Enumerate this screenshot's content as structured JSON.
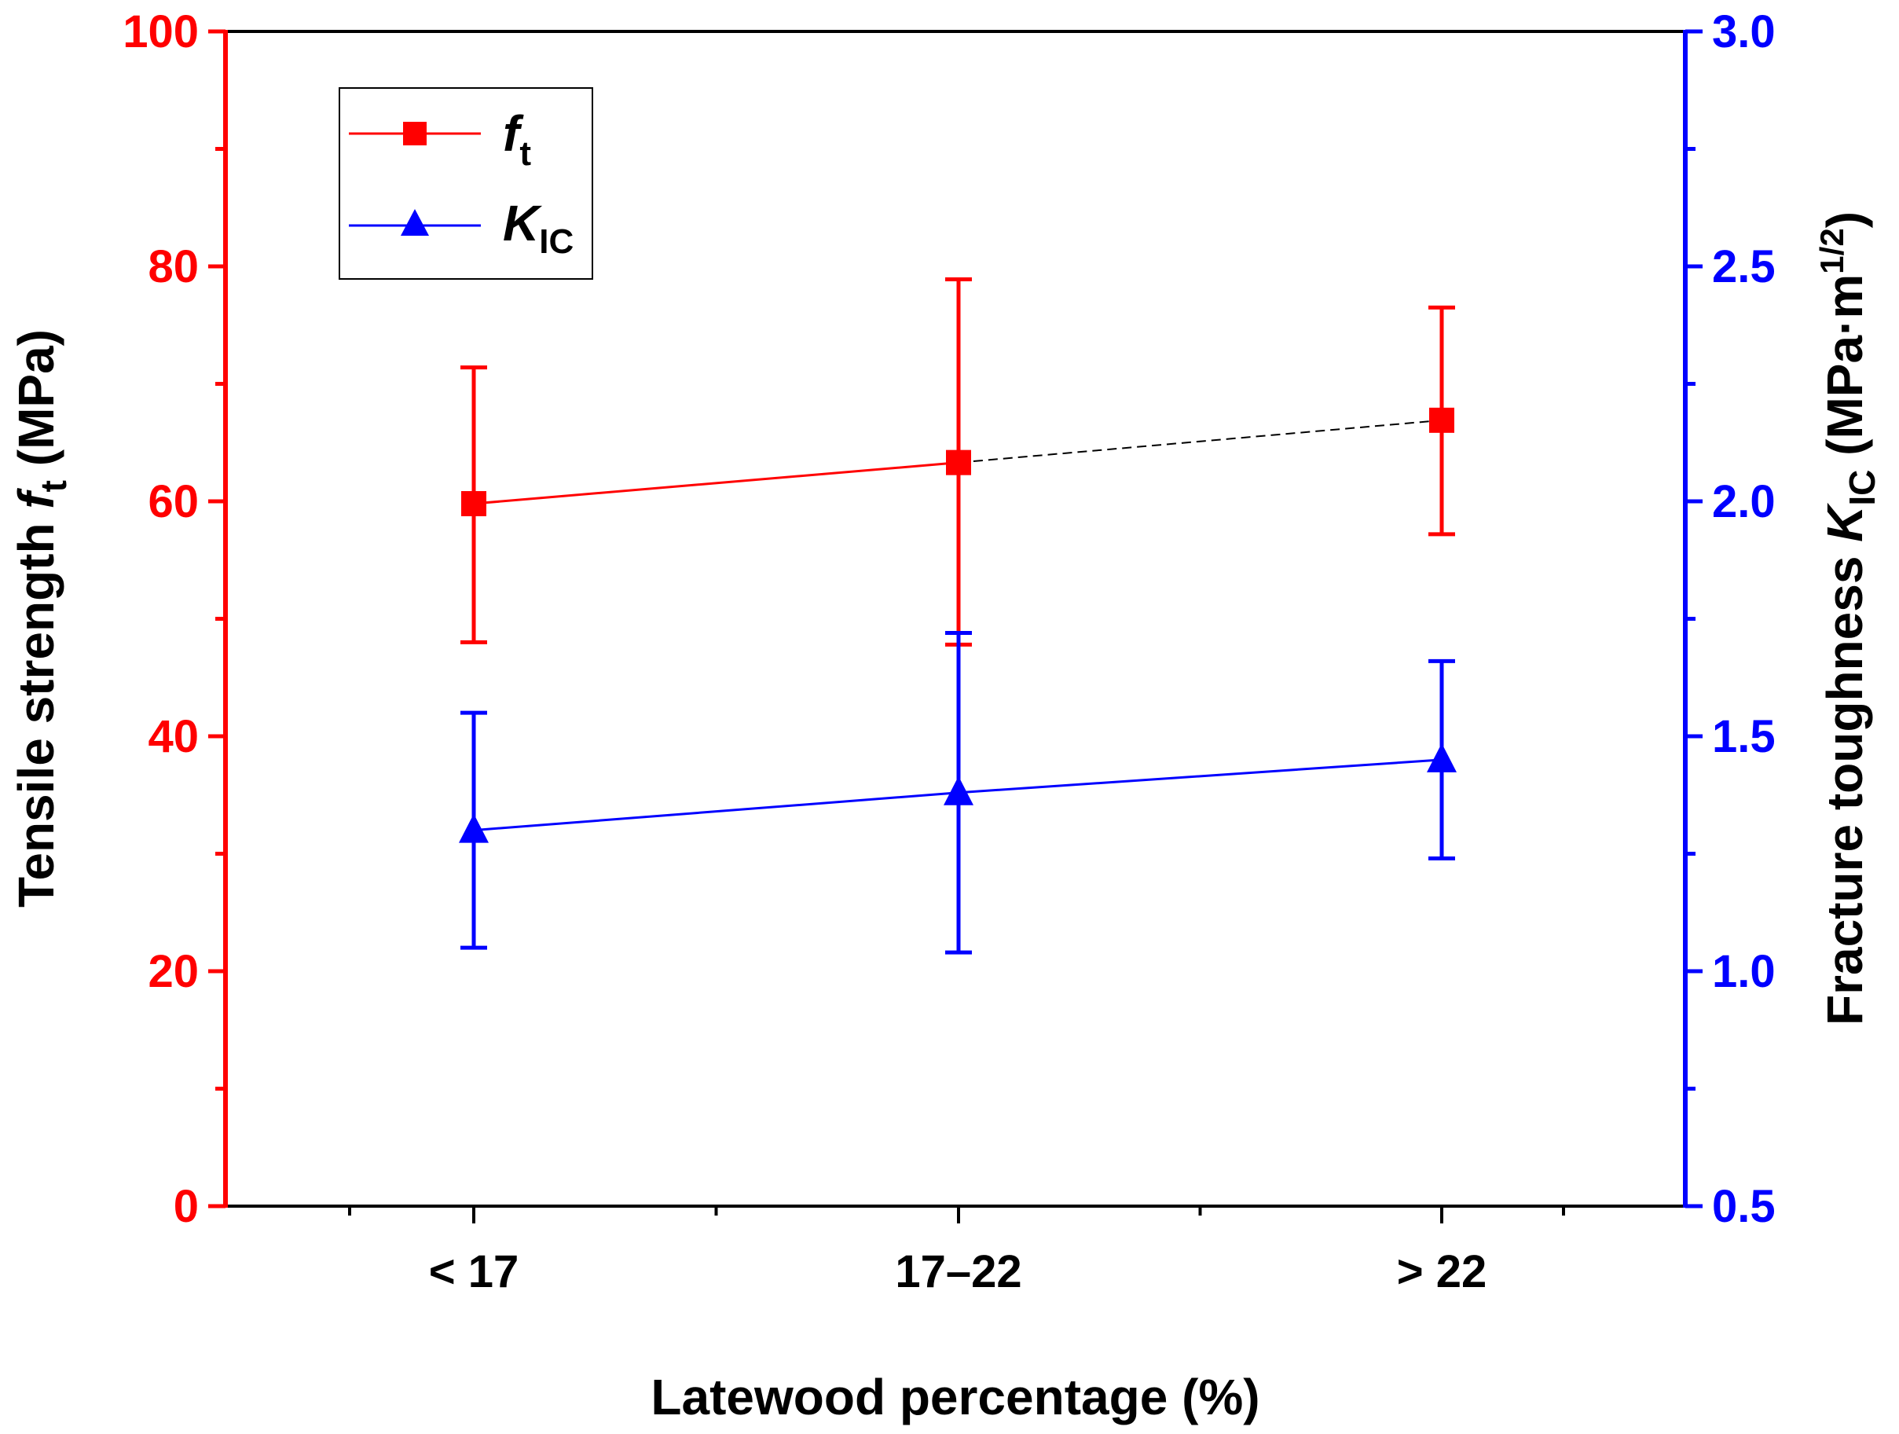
{
  "chart_data": {
    "type": "line",
    "xlabel": "Latewood percentage (%)",
    "categories": [
      "< 17",
      "17–22",
      "> 22"
    ],
    "left_axis": {
      "label_main": "Tensile strength ",
      "label_symbol": "f",
      "label_sub": "t",
      "label_unit": " (MPa)",
      "range": [
        0,
        100
      ],
      "ticks": [
        0,
        20,
        40,
        60,
        80,
        100
      ],
      "tick_labels": [
        "0",
        "20",
        "40",
        "60",
        "80",
        "100"
      ],
      "color": "#ff0000"
    },
    "right_axis": {
      "label_main": "Fracture toughness ",
      "label_symbol": "K",
      "label_sub": "IC",
      "label_unit_pre": " (MPa·m",
      "label_sup": "1/2",
      "label_unit_post": ")",
      "range": [
        0.5,
        3.0
      ],
      "ticks": [
        0.5,
        1.0,
        1.5,
        2.0,
        2.5,
        3.0
      ],
      "tick_labels": [
        "0.5",
        "1.0",
        "1.5",
        "2.0",
        "2.5",
        "3.0"
      ],
      "color": "#0000ff"
    },
    "series": [
      {
        "name": "f_t",
        "legend_symbol": "f",
        "legend_sub": "t",
        "axis": "left",
        "marker": "square",
        "color": "#ff0000",
        "values": [
          59.8,
          63.3,
          66.9
        ],
        "error_low": [
          48.0,
          47.8,
          57.2
        ],
        "error_high": [
          71.4,
          78.9,
          76.5
        ]
      },
      {
        "name": "K_IC",
        "legend_symbol": "K",
        "legend_sub": "IC",
        "axis": "right",
        "marker": "triangle",
        "color": "#0000ff",
        "values": [
          1.3,
          1.38,
          1.45
        ],
        "error_low": [
          1.05,
          1.04,
          1.24
        ],
        "error_high": [
          1.55,
          1.72,
          1.66
        ]
      }
    ],
    "legend_position": "top-left"
  }
}
